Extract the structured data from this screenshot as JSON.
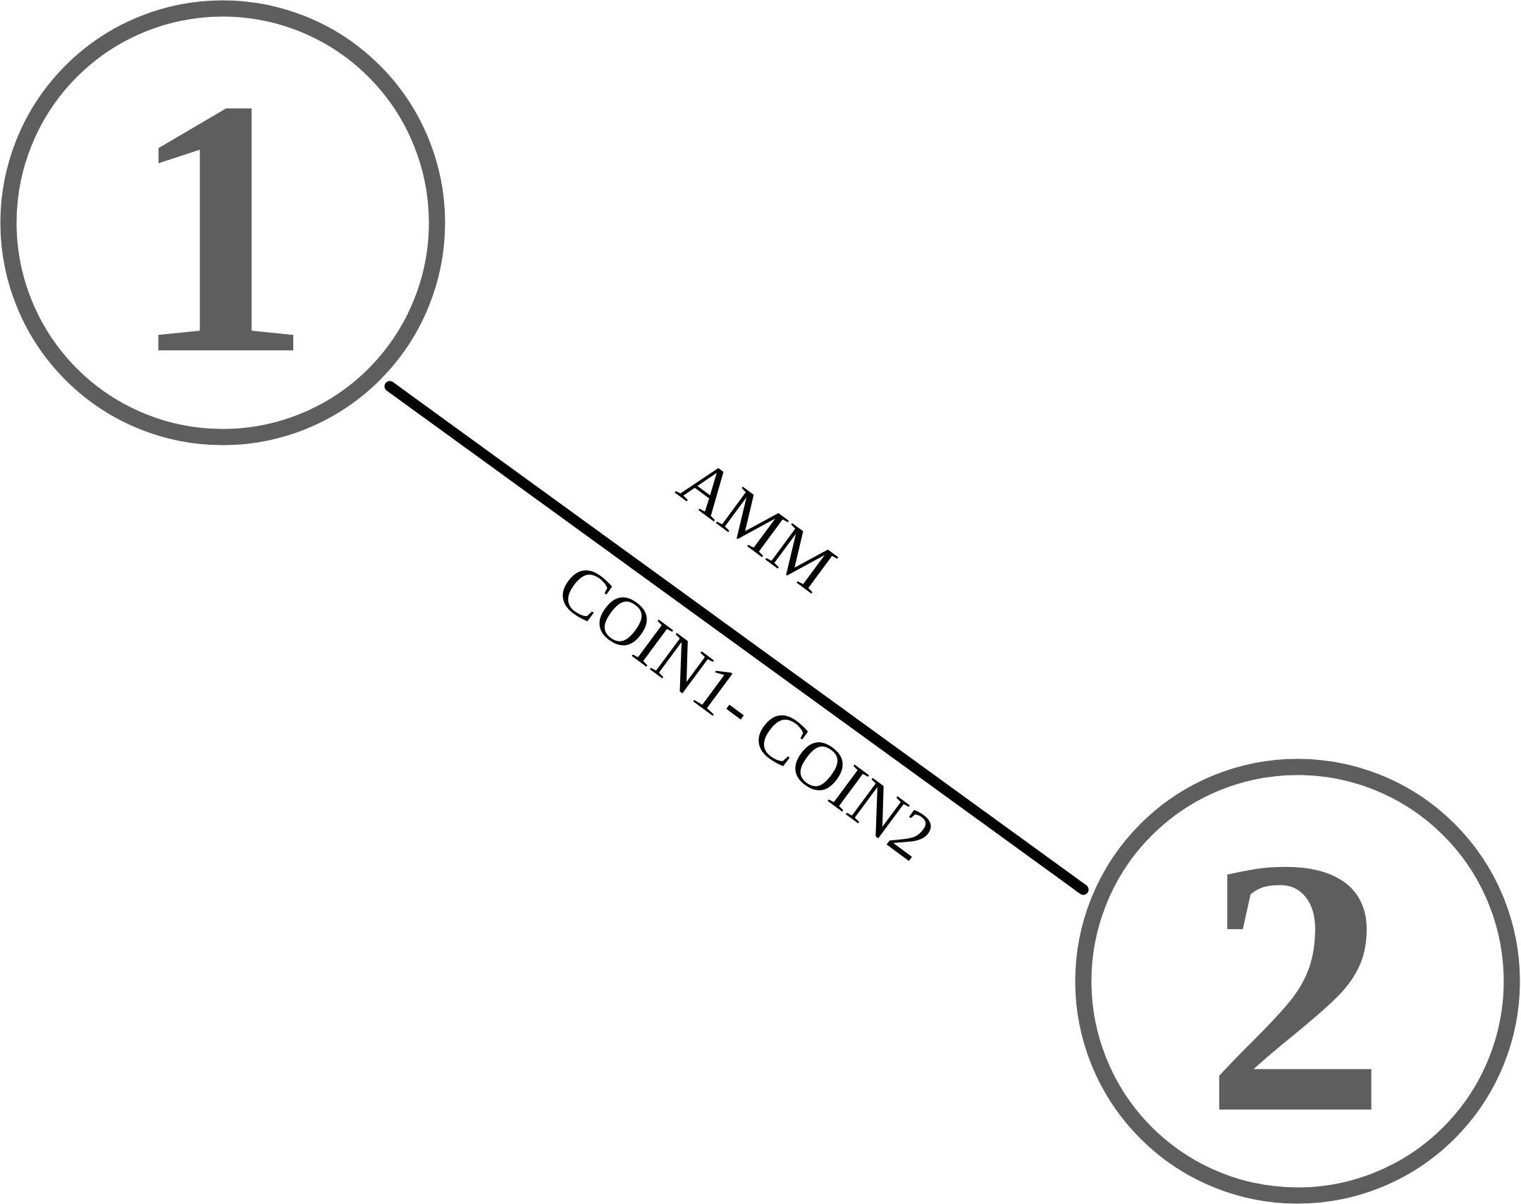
{
  "colors": {
    "node_stroke": "#5e5e5e",
    "node_text": "#5e5e5e",
    "edge": "#000000",
    "background": "#ffffff"
  },
  "nodes": [
    {
      "id": "node-1",
      "label": "1"
    },
    {
      "id": "node-2",
      "label": "2"
    }
  ],
  "edge": {
    "from": "1",
    "to": "2",
    "label_top": "AMM",
    "label_bottom": "COIN1- COIN2"
  }
}
